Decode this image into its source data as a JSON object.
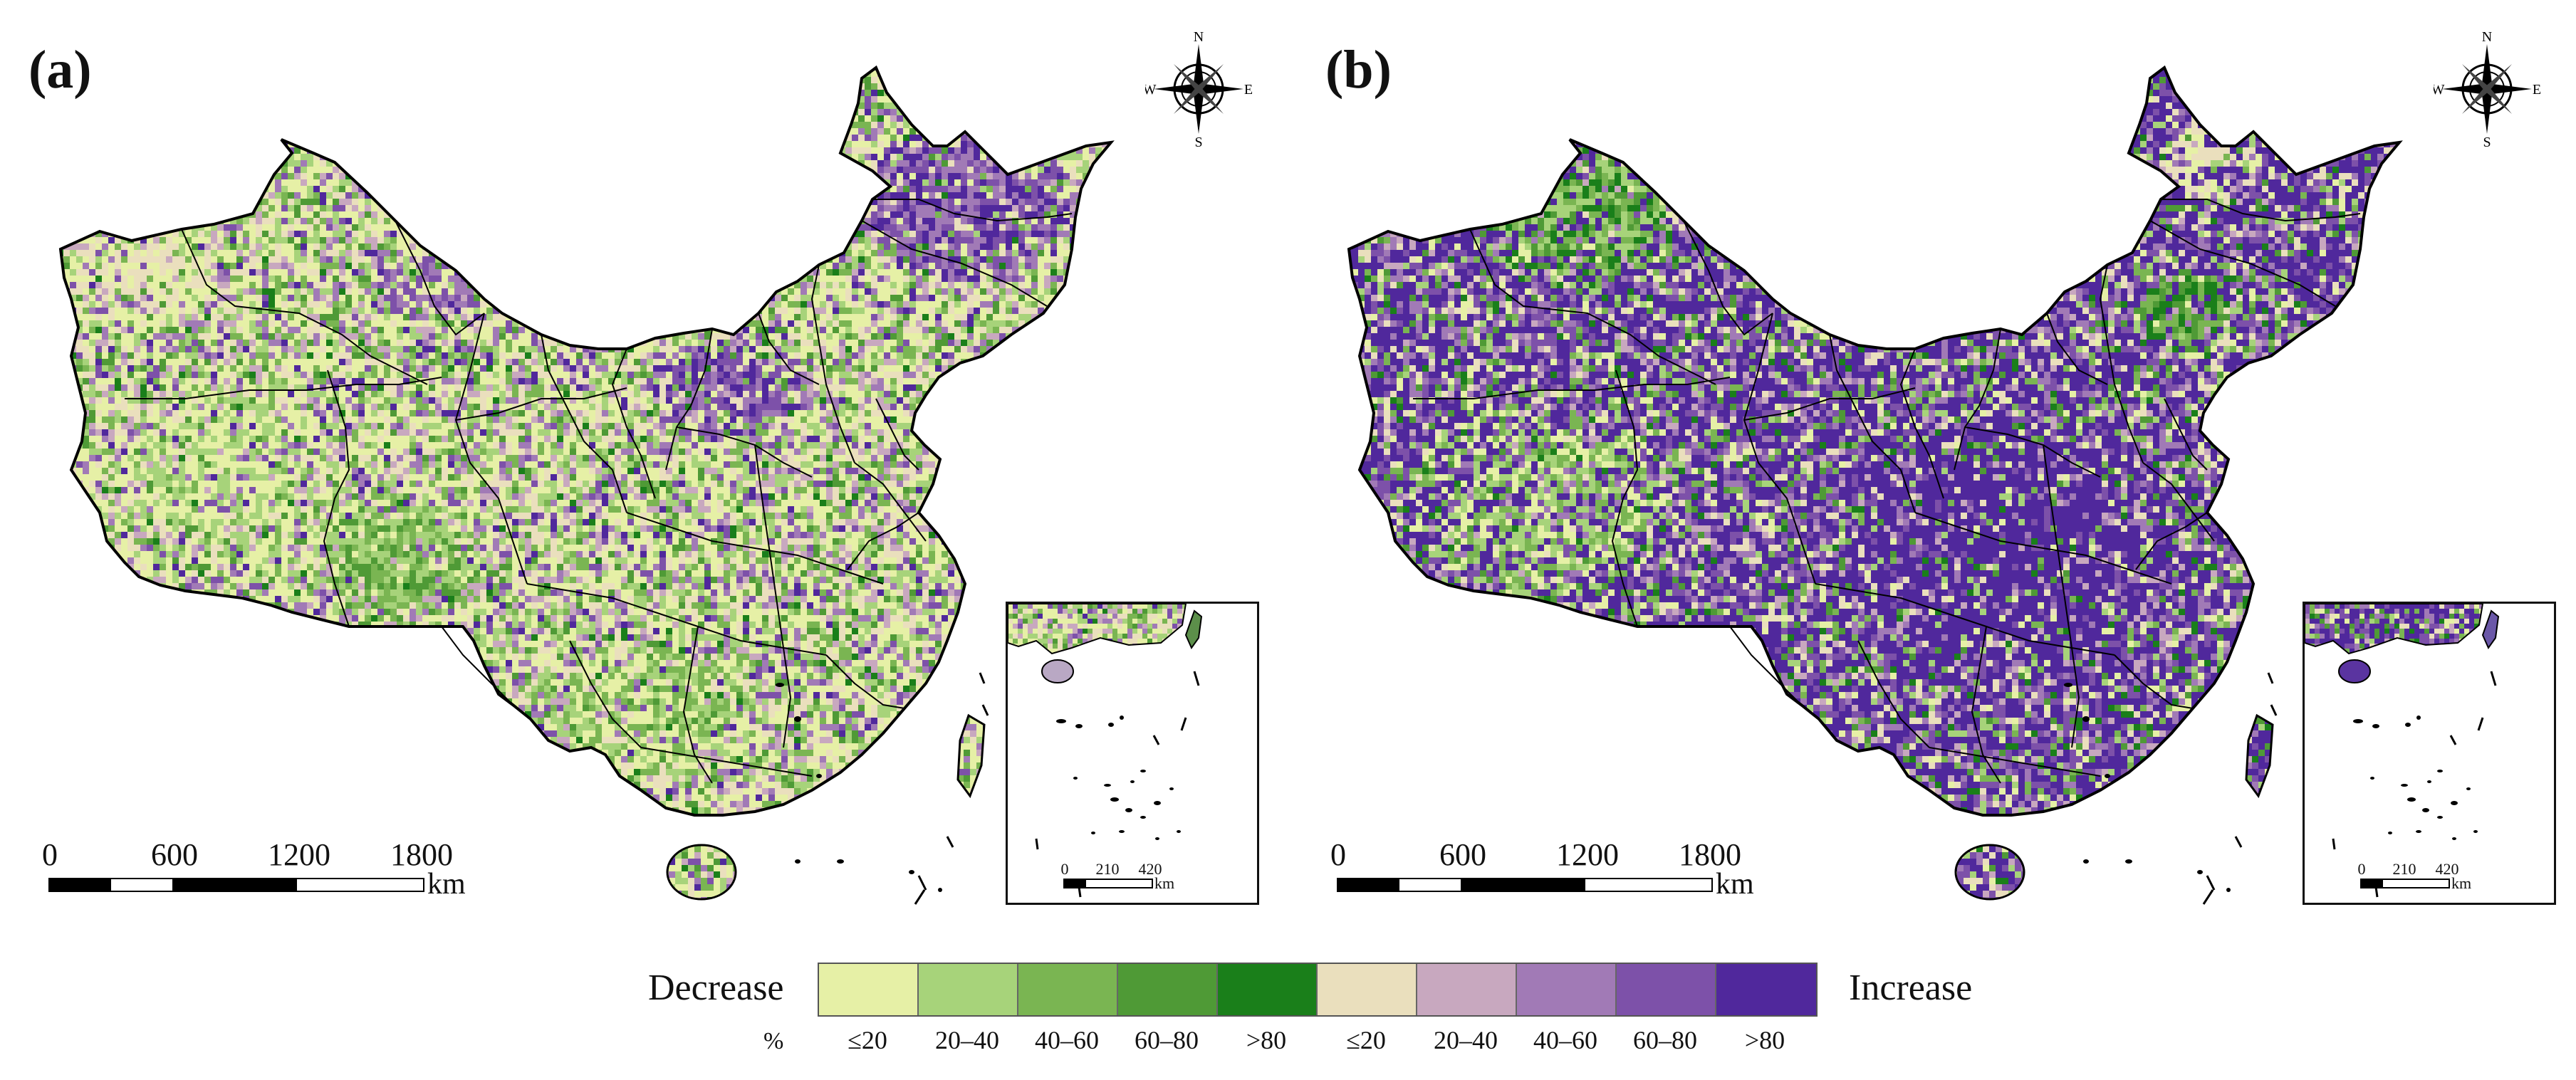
{
  "panels": [
    {
      "label": "(a)",
      "scale_bar": {
        "ticks": [
          "0",
          "600",
          "1200",
          "1800"
        ],
        "unit": "km"
      },
      "inset_scale": {
        "ticks": [
          "0",
          "210",
          "420"
        ],
        "unit": "km"
      },
      "compass": {
        "n": "N",
        "s": "S",
        "e": "E",
        "w": "W"
      },
      "dominant": "mixed-low-change",
      "palette": [
        "#e6f0a6",
        "#a7d37a",
        "#7ab552",
        "#4f9a36",
        "#1a7f1a",
        "#eadfbd",
        "#c8a8bf",
        "#a17ab6",
        "#7d51a9",
        "#50289c"
      ],
      "weights": [
        0.26,
        0.14,
        0.1,
        0.06,
        0.02,
        0.16,
        0.1,
        0.07,
        0.05,
        0.04
      ]
    },
    {
      "label": "(b)",
      "scale_bar": {
        "ticks": [
          "0",
          "600",
          "1200",
          "1800"
        ],
        "unit": "km"
      },
      "inset_scale": {
        "ticks": [
          "0",
          "210",
          "420"
        ],
        "unit": "km"
      },
      "compass": {
        "n": "N",
        "s": "S",
        "e": "E",
        "w": "W"
      },
      "dominant": "strong-increase",
      "palette": [
        "#e6f0a6",
        "#a7d37a",
        "#7ab552",
        "#4f9a36",
        "#1a7f1a",
        "#eadfbd",
        "#c8a8bf",
        "#a17ab6",
        "#7d51a9",
        "#50289c"
      ],
      "weights": [
        0.06,
        0.05,
        0.05,
        0.04,
        0.03,
        0.06,
        0.06,
        0.1,
        0.15,
        0.4
      ]
    }
  ],
  "legend": {
    "decrease_label": "Decrease",
    "increase_label": "Increase",
    "unit": "%",
    "categories": [
      {
        "label": "≤20",
        "color": "#e6f0a6",
        "direction": "decrease"
      },
      {
        "label": "20–40",
        "color": "#a7d37a",
        "direction": "decrease"
      },
      {
        "label": "40–60",
        "color": "#7ab552",
        "direction": "decrease"
      },
      {
        "label": "60–80",
        "color": "#4f9a36",
        "direction": "decrease"
      },
      {
        "label": ">80",
        "color": "#1a7f1a",
        "direction": "decrease"
      },
      {
        "label": "≤20",
        "color": "#eadfbd",
        "direction": "increase"
      },
      {
        "label": "20–40",
        "color": "#c8a8bf",
        "direction": "increase"
      },
      {
        "label": "40–60",
        "color": "#a17ab6",
        "direction": "increase"
      },
      {
        "label": "60–80",
        "color": "#7d51a9",
        "direction": "increase"
      },
      {
        "label": ">80",
        "color": "#50289c",
        "direction": "increase"
      }
    ]
  }
}
